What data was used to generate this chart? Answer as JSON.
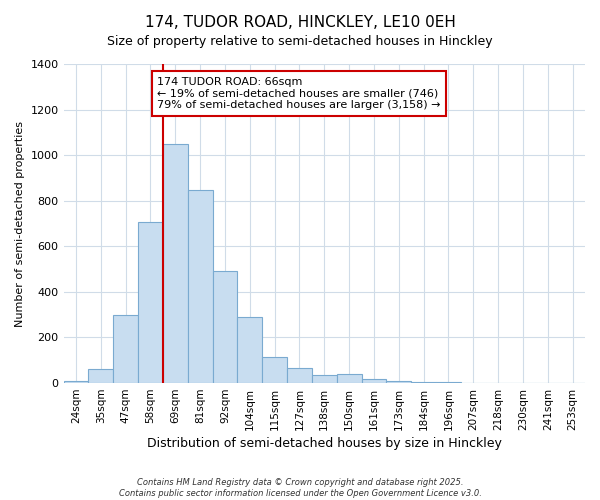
{
  "title_line1": "174, TUDOR ROAD, HINCKLEY, LE10 0EH",
  "title_line2": "Size of property relative to semi-detached houses in Hinckley",
  "xlabel": "Distribution of semi-detached houses by size in Hinckley",
  "ylabel": "Number of semi-detached properties",
  "bar_color": "#c8ddf0",
  "bar_edge_color": "#7aaad0",
  "bins": [
    "24sqm",
    "35sqm",
    "47sqm",
    "58sqm",
    "69sqm",
    "81sqm",
    "92sqm",
    "104sqm",
    "115sqm",
    "127sqm",
    "138sqm",
    "150sqm",
    "161sqm",
    "173sqm",
    "184sqm",
    "196sqm",
    "207sqm",
    "218sqm",
    "230sqm",
    "241sqm",
    "253sqm"
  ],
  "values": [
    8,
    62,
    300,
    705,
    1050,
    845,
    490,
    290,
    115,
    65,
    35,
    40,
    18,
    10,
    5,
    3,
    0,
    0,
    0,
    0,
    0
  ],
  "vline_color": "#cc0000",
  "annotation_title": "174 TUDOR ROAD: 66sqm",
  "annotation_line1": "← 19% of semi-detached houses are smaller (746)",
  "annotation_line2": "79% of semi-detached houses are larger (3,158) →",
  "annotation_box_color": "#cc0000",
  "ylim": [
    0,
    1400
  ],
  "yticks": [
    0,
    200,
    400,
    600,
    800,
    1000,
    1200,
    1400
  ],
  "background_color": "#ffffff",
  "grid_color": "#d0dce8",
  "footer_line1": "Contains HM Land Registry data © Crown copyright and database right 2025.",
  "footer_line2": "Contains public sector information licensed under the Open Government Licence v3.0."
}
